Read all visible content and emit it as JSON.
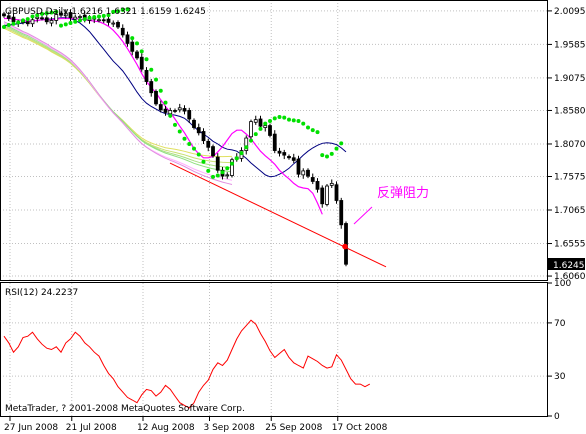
{
  "window": {
    "header": "GBPUSD,Daily  1.6216 1.6321 1.6159 1.6245",
    "current_price_tag": "1.6245",
    "annotation_text": "反弹阻力",
    "footer": "MetaTrader, ? 2001-2008 MetaQuotes Software Corp.",
    "rsi_label": "RSI(12) 24.2237"
  },
  "colors": {
    "candle": "#000000",
    "psar": "#00e000",
    "ma_magenta": "#ff00ff",
    "ma_navy": "#000080",
    "ribbon": [
      "#e0e060",
      "#c8e070",
      "#a8e080",
      "#90e080",
      "#ffb0ff",
      "#e090e0"
    ],
    "trendline": "#ff0000",
    "rsi_line": "#ff0000",
    "resistance_dot": "#ff0000"
  },
  "chart_data": [
    {
      "type": "candlestick",
      "title": "GBPUSD,Daily",
      "ohlc_last": {
        "open": 1.6216,
        "high": 1.6321,
        "low": 1.6159,
        "close": 1.6245
      },
      "x_tick_labels": [
        "27 Jun 2008",
        "21 Jul 2008",
        "12 Aug 2008",
        "3 Sep 2008",
        "25 Sep 2008",
        "17 Oct 2008"
      ],
      "y_tick_labels": [
        2.0095,
        1.9585,
        1.9075,
        1.858,
        1.807,
        1.7575,
        1.7065,
        1.6555,
        1.606
      ],
      "ylim": [
        1.6,
        2.02
      ],
      "grid": true,
      "closes": [
        2.002,
        1.998,
        1.993,
        1.991,
        1.995,
        1.99,
        1.996,
        2.0,
        1.998,
        1.993,
        1.995,
        2.004,
        2.003,
        2.006,
        1.999,
        2.0,
        2.001,
        1.996,
        1.998,
        1.997,
        1.996,
        1.995,
        1.992,
        1.991,
        1.985,
        1.973,
        1.96,
        1.948,
        1.938,
        1.921,
        1.902,
        1.885,
        1.868,
        1.859,
        1.855,
        1.858,
        1.857,
        1.862,
        1.857,
        1.845,
        1.832,
        1.824,
        1.812,
        1.802,
        1.789,
        1.767,
        1.758,
        1.76,
        1.783,
        1.787,
        1.797,
        1.816,
        1.841,
        1.844,
        1.834,
        1.835,
        1.82,
        1.797,
        1.793,
        1.79,
        1.786,
        1.782,
        1.761,
        1.766,
        1.758,
        1.75,
        1.738,
        1.716,
        1.743,
        1.747,
        1.721,
        1.684,
        1.624
      ],
      "psar": [
        1.985,
        1.988,
        1.99,
        1.992,
        1.995,
        1.997,
        2.001,
        2.003,
        2.005,
        2.006,
        2.007,
        2.008,
        1.987,
        1.989,
        1.991,
        1.993,
        1.995,
        1.997,
        1.999,
        2.0,
        2.001,
        2.002,
        2.003,
        2.008,
        2.009,
        2.011,
        2.012,
        1.968,
        1.96,
        1.948,
        1.936,
        1.92,
        1.905,
        1.888,
        1.87,
        1.85,
        1.836,
        1.826,
        1.815,
        1.807,
        1.8,
        1.791,
        1.78,
        1.766,
        1.757,
        1.759,
        1.764,
        1.77,
        1.777,
        1.785,
        1.793,
        1.802,
        1.812,
        1.822,
        1.83,
        1.838,
        1.842,
        1.846,
        1.848,
        1.847,
        1.844,
        1.843,
        1.842,
        1.838,
        1.832,
        1.828,
        1.825,
        1.79,
        1.788,
        1.792,
        1.8,
        1.808
      ],
      "ma_magenta": [
        1.998,
        1.998,
        1.997,
        1.996,
        1.995,
        1.994,
        1.994,
        1.995,
        1.996,
        1.996,
        1.996,
        1.997,
        1.998,
        1.998,
        1.998,
        1.998,
        1.997,
        1.996,
        1.995,
        1.994,
        1.993,
        1.99,
        1.986,
        1.98,
        1.972,
        1.963,
        1.952,
        1.94,
        1.928,
        1.914,
        1.902,
        1.893,
        1.885,
        1.874,
        1.864,
        1.855,
        1.845,
        1.834,
        1.824,
        1.812,
        1.8,
        1.792,
        1.786,
        1.786,
        1.788,
        1.795,
        1.803,
        1.813,
        1.823,
        1.828,
        1.828,
        1.822,
        1.815,
        1.805,
        1.796,
        1.789,
        1.783,
        1.776,
        1.767,
        1.76,
        1.754,
        1.747,
        1.742,
        1.74,
        1.739,
        1.732,
        1.717,
        1.7
      ],
      "ma_navy": [
        1.987,
        1.988,
        1.989,
        1.99,
        1.991,
        1.993,
        1.994,
        1.995,
        1.996,
        1.997,
        1.997,
        1.998,
        1.999,
        1.999,
        1.998,
        1.995,
        1.991,
        1.985,
        1.978,
        1.969,
        1.96,
        1.951,
        1.942,
        1.933,
        1.926,
        1.918,
        1.908,
        1.897,
        1.886,
        1.876,
        1.869,
        1.864,
        1.86,
        1.856,
        1.853,
        1.852,
        1.851,
        1.849,
        1.846,
        1.84,
        1.833,
        1.827,
        1.822,
        1.817,
        1.811,
        1.807,
        1.802,
        1.799,
        1.798
      ],
      "ribbon_ends": [
        1.793,
        1.783,
        1.775,
        1.768,
        1.755,
        1.748
      ],
      "trendline": {
        "from_label": "3 Sep 2008",
        "from_price": 1.775,
        "to_price": 1.62
      },
      "resistance_point": 1.6555,
      "annotation": "反弹阻力"
    },
    {
      "type": "line",
      "title": "RSI(12) 24.2237",
      "ylim": [
        0,
        100
      ],
      "y_tick_labels": [
        100,
        70,
        30,
        0
      ],
      "last_value": 24.2237,
      "values": [
        60,
        55,
        48,
        52,
        59,
        60,
        63,
        58,
        54,
        51,
        50,
        52,
        48,
        55,
        58,
        63,
        60,
        55,
        52,
        48,
        45,
        38,
        32,
        28,
        22,
        18,
        14,
        12,
        10,
        16,
        20,
        19,
        15,
        18,
        23,
        20,
        15,
        10,
        8,
        6,
        10,
        18,
        23,
        27,
        35,
        40,
        38,
        42,
        50,
        58,
        64,
        68,
        72,
        69,
        62,
        56,
        49,
        44,
        47,
        50,
        44,
        40,
        38,
        36,
        45,
        43,
        41,
        38,
        36,
        37,
        46,
        42,
        35,
        28,
        24,
        24,
        22,
        24
      ]
    }
  ]
}
